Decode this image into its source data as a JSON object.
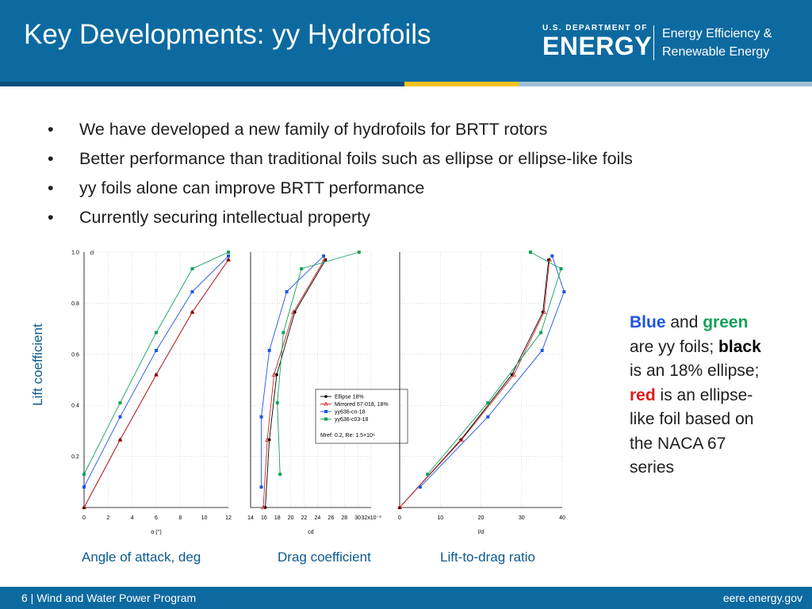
{
  "header": {
    "title": "Key Developments: yy Hydrofoils",
    "logo_dept": "U.S. DEPARTMENT OF",
    "logo_energy": "ENERGY",
    "logo_eere_line1": "Energy Efficiency &",
    "logo_eere_line2": "Renewable Energy"
  },
  "colors": {
    "header_bg": "#0d6aa0",
    "stripe_yellow": "#f6c11a",
    "blue_series": "#1f55e0",
    "green_series": "#13a05a",
    "black_series": "#000000",
    "red_series": "#cc2222",
    "label_blue": "#0d5a8f"
  },
  "bullets": [
    "We have developed a new family of hydrofoils for BRTT rotors",
    "Better performance than traditional foils such as ellipse or ellipse-like foils",
    "yy foils alone can improve BRTT performance",
    "Currently securing intellectual property"
  ],
  "bullet_glyph": "•",
  "y_axis_label": "Lift coefficient",
  "captions": [
    "Angle of attack, deg",
    "Drag coefficient",
    "Lift-to-drag ratio"
  ],
  "side_note": {
    "w1": "Blue",
    "t1": " and ",
    "w2": "green",
    "t2": " are yy foils; ",
    "w3": "black",
    "t3": " is an 18% ellipse; ",
    "w4": "red",
    "t4": " is an ellipse-like foil based on the NACA 67 series"
  },
  "footer": {
    "left": "6 | Wind and Water Power Program",
    "right": "eere.energy.gov"
  },
  "chart_data": [
    {
      "type": "line",
      "xlabel": "α (°)",
      "ylabel": "cl",
      "xlim": [
        0,
        12
      ],
      "ylim": [
        0,
        1.0
      ],
      "x_ticks": [
        "0",
        "2",
        "4",
        "6",
        "8",
        "10",
        "12"
      ],
      "y_ticks": [
        "0.2",
        "0.4",
        "0.6",
        "0.8",
        "1.0"
      ],
      "series": [
        {
          "name": "Ellipse 18%",
          "color": "#000000",
          "marker": "circle",
          "x": [
            0,
            3,
            6,
            9,
            12
          ],
          "y": [
            0.0,
            0.265,
            0.52,
            0.765,
            0.97
          ]
        },
        {
          "name": "Mirrored 67-018, 18%",
          "color": "#cc2222",
          "marker": "triangle",
          "x": [
            0,
            3,
            6,
            9,
            12
          ],
          "y": [
            0.0,
            0.265,
            0.52,
            0.765,
            0.97
          ]
        },
        {
          "name": "yy636-cn-18",
          "color": "#1f55e0",
          "marker": "square",
          "x": [
            0,
            3,
            6,
            9,
            12
          ],
          "y": [
            0.08,
            0.355,
            0.615,
            0.845,
            0.985
          ]
        },
        {
          "name": "yy636-c03-18",
          "color": "#13a05a",
          "marker": "square",
          "x": [
            0,
            3,
            6,
            9,
            12
          ],
          "y": [
            0.13,
            0.41,
            0.685,
            0.935,
            1.0
          ]
        }
      ]
    },
    {
      "type": "line",
      "xlabel": "cd",
      "ylabel": "",
      "xlim": [
        14,
        32
      ],
      "ylim": [
        0,
        1.0
      ],
      "x_ticks": [
        "14",
        "16",
        "18",
        "20",
        "22",
        "24",
        "26",
        "28",
        "30",
        "32x10⁻³"
      ],
      "legend": {
        "placement": "center-right",
        "note": "Mref: 0.2, Re: 1.5×10⁶",
        "entries": [
          "Ellipse 18%",
          "Mirrored 67-018, 18%",
          "yy636-cn-18",
          "yy636-c03-18"
        ]
      },
      "series": [
        {
          "name": "Ellipse 18%",
          "color": "#000000",
          "marker": "circle",
          "x": [
            16.2,
            16.8,
            17.9,
            20.6,
            25.2
          ],
          "y": [
            0.0,
            0.265,
            0.52,
            0.765,
            0.97
          ]
        },
        {
          "name": "Mirrored 67-018, 18%",
          "color": "#cc2222",
          "marker": "triangle",
          "x": [
            15.9,
            16.5,
            17.5,
            20.4,
            25.0
          ],
          "y": [
            0.0,
            0.265,
            0.52,
            0.765,
            0.97
          ]
        },
        {
          "name": "yy636-cn-18",
          "color": "#1f55e0",
          "marker": "square",
          "x": [
            15.6,
            15.6,
            16.8,
            19.4,
            24.9
          ],
          "y": [
            0.08,
            0.355,
            0.615,
            0.845,
            0.985
          ]
        },
        {
          "name": "yy636-c03-18",
          "color": "#13a05a",
          "marker": "square",
          "x": [
            18.4,
            18.0,
            18.9,
            21.6,
            30.2
          ],
          "y": [
            0.13,
            0.41,
            0.685,
            0.935,
            1.0
          ]
        }
      ]
    },
    {
      "type": "line",
      "xlabel": "l/d",
      "ylabel": "",
      "xlim": [
        0,
        42
      ],
      "ylim": [
        0,
        1.0
      ],
      "x_ticks": [
        "0",
        "10",
        "20",
        "30",
        "40"
      ],
      "series": [
        {
          "name": "Ellipse 18%",
          "color": "#000000",
          "marker": "circle",
          "x": [
            0,
            15.8,
            29.0,
            37.0,
            38.5
          ],
          "y": [
            0.0,
            0.265,
            0.52,
            0.765,
            0.97
          ]
        },
        {
          "name": "Mirrored 67-018, 18%",
          "color": "#cc2222",
          "marker": "triangle",
          "x": [
            0,
            16.0,
            29.5,
            37.3,
            38.7
          ],
          "y": [
            0.0,
            0.265,
            0.52,
            0.765,
            0.97
          ]
        },
        {
          "name": "yy636-cn-18",
          "color": "#1f55e0",
          "marker": "square",
          "x": [
            5.3,
            22.8,
            36.8,
            42.5,
            39.4
          ],
          "y": [
            0.08,
            0.355,
            0.615,
            0.845,
            0.985
          ]
        },
        {
          "name": "yy636-c03-18",
          "color": "#13a05a",
          "marker": "square",
          "x": [
            7.2,
            22.8,
            36.5,
            41.7,
            33.8
          ],
          "y": [
            0.13,
            0.41,
            0.685,
            0.935,
            1.0
          ]
        }
      ]
    }
  ]
}
